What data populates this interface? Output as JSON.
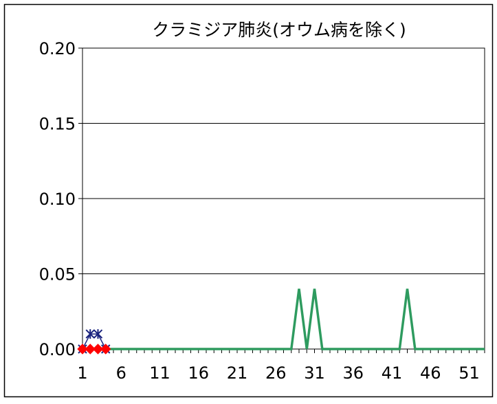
{
  "chart_data": {
    "type": "line",
    "title": "クラミジア肺炎(オウム病を除く)",
    "xlabel": "",
    "ylabel": "",
    "ylim": [
      0,
      0.2
    ],
    "xlim": [
      1,
      53
    ],
    "yticks": [
      "0.00",
      "0.05",
      "0.10",
      "0.15",
      "0.20"
    ],
    "xticks": [
      "1",
      "6",
      "11",
      "16",
      "21",
      "26",
      "31",
      "36",
      "41",
      "46",
      "51"
    ],
    "grid": true,
    "legend": "none",
    "series": [
      {
        "color": "#2e9b5f",
        "marker": "none",
        "x": [
          1,
          2,
          3,
          4,
          5,
          6,
          7,
          8,
          9,
          10,
          11,
          12,
          13,
          14,
          15,
          16,
          17,
          18,
          19,
          20,
          21,
          22,
          23,
          24,
          25,
          26,
          27,
          28,
          29,
          30,
          31,
          32,
          33,
          34,
          35,
          36,
          37,
          38,
          39,
          40,
          41,
          42,
          43,
          44,
          45,
          46,
          47,
          48,
          49,
          50,
          51,
          52,
          53
        ],
        "values": [
          0,
          0,
          0,
          0,
          0,
          0,
          0,
          0,
          0,
          0,
          0,
          0,
          0,
          0,
          0,
          0,
          0,
          0,
          0,
          0,
          0,
          0,
          0,
          0,
          0,
          0,
          0,
          0,
          0.04,
          0,
          0.04,
          0,
          0,
          0,
          0,
          0,
          0,
          0,
          0,
          0,
          0,
          0,
          0.04,
          0,
          0,
          0,
          0,
          0,
          0,
          0,
          0,
          0,
          0
        ]
      },
      {
        "color": "#1a237e",
        "marker": "asterisk",
        "x": [
          1,
          2,
          3,
          4
        ],
        "values": [
          0,
          0.01,
          0.01,
          0
        ]
      },
      {
        "color": "#ff0000",
        "marker": "diamond",
        "x": [
          1,
          2,
          3,
          4
        ],
        "values": [
          0,
          0,
          0,
          0
        ]
      }
    ]
  }
}
